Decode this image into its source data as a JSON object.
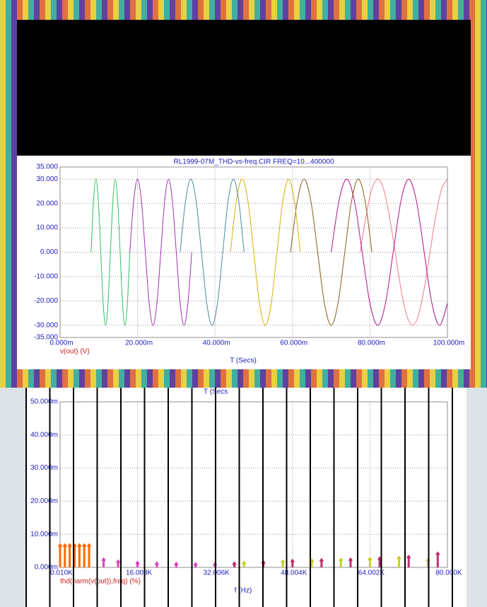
{
  "chart_data": [
    {
      "type": "line",
      "title": "RL1999-07M_THD-vs-freq.CIR FREQ=10...400000",
      "x_label": "T (Secs)",
      "y_label": "v(out) (V)",
      "grid": true,
      "xlim": [
        0,
        0.1
      ],
      "ylim": [
        -35,
        35
      ],
      "xticks": [
        {
          "value": 0,
          "label": "0.000m"
        },
        {
          "value": 0.02,
          "label": "20.000m"
        },
        {
          "value": 0.04,
          "label": "40.000m"
        },
        {
          "value": 0.06,
          "label": "60.000m"
        },
        {
          "value": 0.08,
          "label": "80.000m"
        },
        {
          "value": 0.1,
          "label": "100.000m"
        }
      ],
      "yticks": [
        {
          "value": 35,
          "label": "35.000"
        },
        {
          "value": 30,
          "label": "30.000"
        },
        {
          "value": 20,
          "label": "20.000"
        },
        {
          "value": 10,
          "label": "10.000"
        },
        {
          "value": 0,
          "label": "0.000"
        },
        {
          "value": -10,
          "label": "-10.000"
        },
        {
          "value": -20,
          "label": "-20.000"
        },
        {
          "value": -30,
          "label": "-30.000"
        },
        {
          "value": -35,
          "label": "-35.000"
        }
      ],
      "series": [
        {
          "color": "#f07888",
          "x": [
            0.0775,
            0.079,
            0.0805,
            0.082,
            0.0835,
            0.085,
            0.0865,
            0.088,
            0.0895,
            0.091,
            0.0925,
            0.094,
            0.0955,
            0.097,
            0.0985,
            0.1
          ],
          "values": [
            0,
            15,
            26,
            30,
            26,
            15,
            0,
            -15,
            -26,
            -30,
            -26,
            -15,
            0,
            15,
            26,
            30
          ]
        },
        {
          "color": "#b0108a",
          "x": [
            0.07,
            0.072,
            0.074,
            0.076,
            0.078,
            0.08,
            0.082,
            0.084,
            0.086,
            0.088,
            0.09,
            0.092,
            0.094,
            0.096,
            0.098,
            0.1
          ],
          "values": [
            0,
            21,
            30,
            21,
            0,
            -21,
            -30,
            -21,
            0,
            21,
            30,
            21,
            0,
            -21,
            -30,
            -21
          ]
        },
        {
          "color": "#8b5a1a",
          "x": [
            0.0595,
            0.06125,
            0.063,
            0.06475,
            0.0665,
            0.06825,
            0.07,
            0.07175,
            0.0735,
            0.07525,
            0.077,
            0.07875,
            0.0805
          ],
          "values": [
            0,
            21,
            30,
            21,
            0,
            -21,
            -30,
            -21,
            0,
            21,
            30,
            21,
            0
          ]
        },
        {
          "color": "#d4b000",
          "x": [
            0.044,
            0.0455,
            0.047,
            0.0485,
            0.05,
            0.0515,
            0.053,
            0.0545,
            0.056,
            0.0575,
            0.059,
            0.0605,
            0.062
          ],
          "values": [
            0,
            21,
            30,
            21,
            0,
            -21,
            -30,
            -21,
            0,
            21,
            30,
            21,
            0
          ]
        },
        {
          "color": "#4a8aa0",
          "x": [
            0.031,
            0.032375,
            0.03375,
            0.035125,
            0.0365,
            0.037875,
            0.03925,
            0.040625,
            0.042,
            0.043375,
            0.04475,
            0.046125,
            0.0475
          ],
          "values": [
            0,
            21,
            30,
            21,
            0,
            -21,
            -30,
            -21,
            0,
            21,
            30,
            21,
            0
          ]
        },
        {
          "color": "#a030b0",
          "x": [
            0.018,
            0.019,
            0.02,
            0.021,
            0.022,
            0.023,
            0.024,
            0.025,
            0.026,
            0.027,
            0.028,
            0.029,
            0.03,
            0.031,
            0.032,
            0.033,
            0.034
          ],
          "values": [
            0,
            21,
            30,
            21,
            0,
            -21,
            -30,
            -21,
            0,
            21,
            30,
            21,
            0,
            -21,
            -30,
            -21,
            0
          ]
        },
        {
          "color": "#30c060",
          "x": [
            0.008,
            0.008625,
            0.00925,
            0.009875,
            0.0105,
            0.011125,
            0.01175,
            0.012375,
            0.013,
            0.013625,
            0.01425,
            0.014875,
            0.0155,
            0.016125,
            0.01675,
            0.017375,
            0.018
          ],
          "values": [
            0,
            21,
            30,
            21,
            0,
            -21,
            -30,
            -21,
            0,
            21,
            30,
            21,
            0,
            -21,
            -30,
            -21,
            0
          ]
        }
      ]
    },
    {
      "type": "stem",
      "overlay_text": "T (Secs",
      "x_label": "f (Hz)",
      "y_label": "thd(harm(v(out)),freq) (%)",
      "grid": true,
      "xlim": [
        10,
        80000
      ],
      "ylim": [
        0,
        0.05
      ],
      "xticks": [
        {
          "value": 10,
          "label": "0.010K"
        },
        {
          "value": 16008,
          "label": "16.008K"
        },
        {
          "value": 32006,
          "label": "32.006K"
        },
        {
          "value": 48004,
          "label": "48.004K"
        },
        {
          "value": 64002,
          "label": "64.002K"
        },
        {
          "value": 80000,
          "label": "80.000K"
        }
      ],
      "yticks": [
        {
          "value": 0.05,
          "label": "50.000m"
        },
        {
          "value": 0.04,
          "label": "40.000m"
        },
        {
          "value": 0.03,
          "label": "30.000m"
        },
        {
          "value": 0.02,
          "label": "20.000m"
        },
        {
          "value": 0.01,
          "label": "10.000m"
        },
        {
          "value": 0,
          "label": "0.000m"
        }
      ],
      "series": [
        {
          "color": "#ff6a00",
          "x": [
            10,
            1000,
            2000,
            3000,
            4000,
            5000,
            6000
          ],
          "values": [
            0.0065,
            0.0065,
            0.0065,
            0.0065,
            0.0065,
            0.0065,
            0.0065
          ]
        },
        {
          "color": "#e040c0",
          "x": [
            9000,
            12000,
            16000,
            20000,
            24000,
            28000,
            32000
          ],
          "values": [
            0.0022,
            0.0016,
            0.0012,
            0.001,
            0.0009,
            0.0008,
            0.0008
          ]
        },
        {
          "color": "#c03070",
          "x": [
            36000,
            42000,
            48000,
            54000,
            60000,
            66000,
            72000,
            78000
          ],
          "values": [
            0.001,
            0.0014,
            0.0018,
            0.002,
            0.0022,
            0.0025,
            0.003,
            0.004
          ]
        },
        {
          "color": "#c8d020",
          "x": [
            38000,
            46000,
            52000,
            58000,
            64000,
            70000,
            76000
          ],
          "values": [
            0.0012,
            0.0016,
            0.0019,
            0.0021,
            0.0024,
            0.0027,
            0.002
          ]
        }
      ]
    }
  ]
}
